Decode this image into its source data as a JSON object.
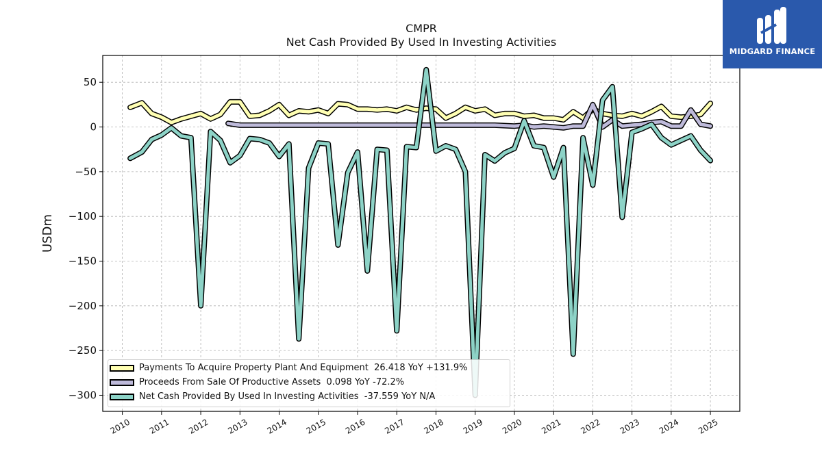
{
  "header": {
    "title": "CMPR",
    "subtitle": "Net Cash Provided By Used In Investing Activities"
  },
  "logo": {
    "text": "MIDGARD FINANCE",
    "color": "#2a59ac"
  },
  "chart_data": {
    "type": "line",
    "title": "CMPR",
    "subtitle": "Net Cash Provided By Used In Investing Activities",
    "xlabel": "",
    "ylabel": "USDm",
    "xlim": [
      2009.5,
      2025.75
    ],
    "ylim": [
      -318,
      80
    ],
    "x_ticks": [
      2010,
      2011,
      2012,
      2013,
      2014,
      2015,
      2016,
      2017,
      2018,
      2019,
      2020,
      2021,
      2022,
      2023,
      2024,
      2025
    ],
    "x_tick_labels": [
      "2010",
      "2011",
      "2012",
      "2013",
      "2014",
      "2015",
      "2016",
      "2017",
      "2018",
      "2019",
      "2020",
      "2021",
      "2022",
      "2023",
      "2024",
      "2025"
    ],
    "y_ticks": [
      50,
      0,
      -50,
      -100,
      -150,
      -200,
      -250,
      -300
    ],
    "y_tick_labels": [
      "50",
      "0",
      "−50",
      "−100",
      "−150",
      "−200",
      "−250",
      "−300"
    ],
    "grid": true,
    "legend_position": "lower-left",
    "series": [
      {
        "name": "Payments To Acquire Property Plant And Equipment",
        "legend_label": "Payments To Acquire Property Plant And Equipment  26.418 YoY +131.9%",
        "color": "#ffffb3",
        "points": [
          [
            2010.2,
            22
          ],
          [
            2010.5,
            27
          ],
          [
            2010.75,
            15
          ],
          [
            2011.0,
            11
          ],
          [
            2011.25,
            5
          ],
          [
            2011.5,
            9
          ],
          [
            2011.75,
            12
          ],
          [
            2012.0,
            15
          ],
          [
            2012.25,
            9
          ],
          [
            2012.5,
            14
          ],
          [
            2012.75,
            28
          ],
          [
            2013.0,
            28
          ],
          [
            2013.25,
            12
          ],
          [
            2013.5,
            13
          ],
          [
            2013.75,
            18
          ],
          [
            2014.0,
            25
          ],
          [
            2014.25,
            13
          ],
          [
            2014.5,
            18
          ],
          [
            2014.75,
            17
          ],
          [
            2015.0,
            19
          ],
          [
            2015.25,
            15
          ],
          [
            2015.5,
            26
          ],
          [
            2015.75,
            25
          ],
          [
            2016.0,
            20
          ],
          [
            2016.25,
            20
          ],
          [
            2016.5,
            19
          ],
          [
            2016.75,
            20
          ],
          [
            2017.0,
            18
          ],
          [
            2017.25,
            22
          ],
          [
            2017.5,
            19
          ],
          [
            2017.75,
            21
          ],
          [
            2018.0,
            20
          ],
          [
            2018.25,
            10
          ],
          [
            2018.5,
            15
          ],
          [
            2018.75,
            22
          ],
          [
            2019.0,
            18
          ],
          [
            2019.25,
            20
          ],
          [
            2019.5,
            13
          ],
          [
            2019.75,
            15
          ],
          [
            2020.0,
            15
          ],
          [
            2020.25,
            12
          ],
          [
            2020.5,
            13
          ],
          [
            2020.75,
            10
          ],
          [
            2021.0,
            10
          ],
          [
            2021.25,
            8
          ],
          [
            2021.5,
            17
          ],
          [
            2021.75,
            10
          ],
          [
            2022.0,
            20
          ],
          [
            2022.25,
            15
          ],
          [
            2022.5,
            13
          ],
          [
            2022.75,
            12
          ],
          [
            2023.0,
            15
          ],
          [
            2023.25,
            12
          ],
          [
            2023.5,
            17
          ],
          [
            2023.75,
            23
          ],
          [
            2024.0,
            12
          ],
          [
            2024.25,
            11
          ],
          [
            2024.5,
            12
          ],
          [
            2024.75,
            14
          ],
          [
            2025.0,
            26.418
          ]
        ]
      },
      {
        "name": "Proceeds From Sale Of Productive Assets",
        "legend_label": "Proceeds From Sale Of Productive Assets  0.098 YoY -72.2%",
        "color": "#bebada",
        "points": [
          [
            2012.7,
            4
          ],
          [
            2013.0,
            2
          ],
          [
            2013.5,
            2
          ],
          [
            2014.0,
            2
          ],
          [
            2014.5,
            2
          ],
          [
            2015.0,
            2
          ],
          [
            2015.5,
            2
          ],
          [
            2016.0,
            2
          ],
          [
            2016.5,
            2
          ],
          [
            2017.0,
            2
          ],
          [
            2017.5,
            2
          ],
          [
            2018.0,
            2
          ],
          [
            2018.5,
            2
          ],
          [
            2019.0,
            2
          ],
          [
            2019.5,
            2
          ],
          [
            2020.0,
            1
          ],
          [
            2020.25,
            2
          ],
          [
            2020.5,
            0
          ],
          [
            2020.75,
            1
          ],
          [
            2021.0,
            0
          ],
          [
            2021.25,
            -1
          ],
          [
            2021.5,
            1
          ],
          [
            2021.75,
            1
          ],
          [
            2022.0,
            25
          ],
          [
            2022.25,
            0
          ],
          [
            2022.5,
            8
          ],
          [
            2022.75,
            1
          ],
          [
            2023.0,
            2
          ],
          [
            2023.25,
            3
          ],
          [
            2023.5,
            5
          ],
          [
            2023.75,
            6
          ],
          [
            2024.0,
            1
          ],
          [
            2024.25,
            1
          ],
          [
            2024.5,
            19
          ],
          [
            2024.75,
            3
          ],
          [
            2025.0,
            1
          ]
        ]
      },
      {
        "name": "Net Cash Provided By Used In Investing Activities",
        "legend_label": "Net Cash Provided By Used In Investing Activities  -37.559 YoY N/A",
        "color": "#8dd3c7",
        "points": [
          [
            2010.2,
            -35
          ],
          [
            2010.5,
            -28
          ],
          [
            2010.75,
            -14
          ],
          [
            2011.0,
            -9
          ],
          [
            2011.25,
            -1
          ],
          [
            2011.5,
            -10
          ],
          [
            2011.75,
            -12
          ],
          [
            2012.0,
            -200
          ],
          [
            2012.25,
            -5
          ],
          [
            2012.5,
            -15
          ],
          [
            2012.75,
            -40
          ],
          [
            2013.0,
            -32
          ],
          [
            2013.25,
            -13
          ],
          [
            2013.5,
            -14
          ],
          [
            2013.75,
            -18
          ],
          [
            2014.0,
            -33
          ],
          [
            2014.25,
            -19
          ],
          [
            2014.5,
            -237
          ],
          [
            2014.75,
            -46
          ],
          [
            2015.0,
            -18
          ],
          [
            2015.25,
            -19
          ],
          [
            2015.5,
            -132
          ],
          [
            2015.75,
            -51
          ],
          [
            2016.0,
            -28
          ],
          [
            2016.25,
            -161
          ],
          [
            2016.5,
            -25
          ],
          [
            2016.75,
            -26
          ],
          [
            2017.0,
            -228
          ],
          [
            2017.25,
            -22
          ],
          [
            2017.5,
            -23
          ],
          [
            2017.75,
            64
          ],
          [
            2018.0,
            -27
          ],
          [
            2018.25,
            -21
          ],
          [
            2018.5,
            -25
          ],
          [
            2018.75,
            -50
          ],
          [
            2019.0,
            -300
          ],
          [
            2019.25,
            -31
          ],
          [
            2019.5,
            -38
          ],
          [
            2019.75,
            -29
          ],
          [
            2020.0,
            -24
          ],
          [
            2020.25,
            7
          ],
          [
            2020.5,
            -21
          ],
          [
            2020.75,
            -23
          ],
          [
            2021.0,
            -56
          ],
          [
            2021.25,
            -23
          ],
          [
            2021.5,
            -254
          ],
          [
            2021.75,
            -12
          ],
          [
            2022.0,
            -65
          ],
          [
            2022.25,
            30
          ],
          [
            2022.5,
            45
          ],
          [
            2022.75,
            -101
          ],
          [
            2023.0,
            -6
          ],
          [
            2023.25,
            -2
          ],
          [
            2023.5,
            3
          ],
          [
            2023.75,
            -12
          ],
          [
            2024.0,
            -20
          ],
          [
            2024.25,
            -15
          ],
          [
            2024.5,
            -10
          ],
          [
            2024.75,
            -26
          ],
          [
            2025.0,
            -37.559
          ]
        ]
      }
    ]
  }
}
